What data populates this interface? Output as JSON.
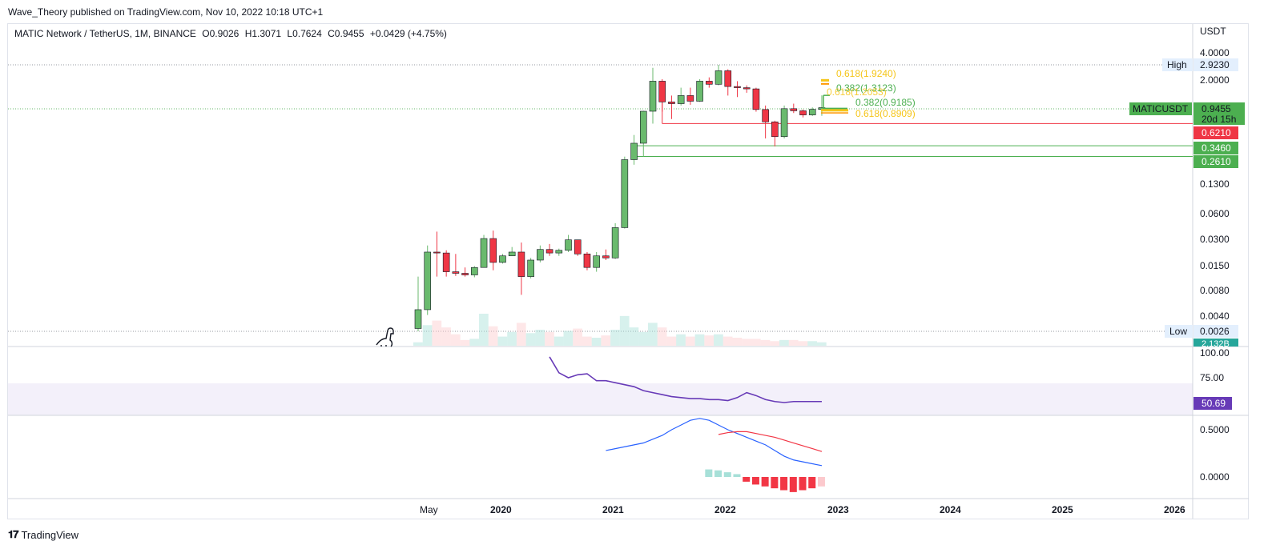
{
  "header": {
    "published_by": "Wave_Theory published on TradingView.com, Nov 10, 2022 10:18 UTC+1"
  },
  "legend": {
    "symbol": "MATIC Network / TetherUS, 1M, BINANCE",
    "open": "O0.9026",
    "high": "H1.3071",
    "low": "L0.7624",
    "close": "C0.9455",
    "change": "+0.0429 (+4.75%)"
  },
  "price_axis": {
    "currency": "USDT",
    "ticks": [
      "4.0000",
      "2.0000",
      "0.1300",
      "0.0600",
      "0.0300",
      "0.0150",
      "0.0080",
      "0.0040"
    ]
  },
  "price_labels": {
    "high_label": "High",
    "high_value": "2.9230",
    "low_label": "Low",
    "low_value": "0.0026",
    "symbol_tag": "MATICUSDT",
    "last_price": "0.9455",
    "countdown": "20d 15h",
    "resistance": "0.6210",
    "support_1": "0.3460",
    "support_2": "0.2610",
    "volume_tag": "2.132B"
  },
  "fib_labels": {
    "gold_top": "0.618(1.9240)",
    "green_mid": "0.382(1.3123)",
    "gold_mid": "0.618(1.2053)",
    "green_low": "0.382(0.9185)",
    "gold_low": "0.618(0.8909)"
  },
  "rsi": {
    "ticks": [
      "100.00",
      "75.00"
    ],
    "value": "50.69",
    "color": "#673ab7"
  },
  "macd": {
    "ticks": [
      "0.5000",
      "0.0000"
    ]
  },
  "time_axis": {
    "labels": [
      "May",
      "2020",
      "2021",
      "2022",
      "2023",
      "2024",
      "2025",
      "2026"
    ]
  },
  "branding": {
    "name": "TradingView"
  },
  "colors": {
    "up": "#6aba6e",
    "down": "#ef3645",
    "rsi_band": "#f3f0fa",
    "signal": "#f23645",
    "macd_line": "#2962ff",
    "hist_pos": "#a7e0d8",
    "hist_neg": "#f23645",
    "gold": "#f5c518",
    "green_fib": "#4caf50"
  },
  "chart_data": {
    "type": "candlestick",
    "title": "MATIC Network / TetherUS, 1M, BINANCE",
    "y_scale": "log",
    "ylabel": "USDT",
    "candles": [
      {
        "t": "2019-04",
        "o": 0.0028,
        "h": 0.011,
        "l": 0.0026,
        "c": 0.0046
      },
      {
        "t": "2019-05",
        "o": 0.0046,
        "h": 0.025,
        "l": 0.004,
        "c": 0.021
      },
      {
        "t": "2019-06",
        "o": 0.021,
        "h": 0.036,
        "l": 0.011,
        "c": 0.0205
      },
      {
        "t": "2019-07",
        "o": 0.0205,
        "h": 0.022,
        "l": 0.011,
        "c": 0.0125
      },
      {
        "t": "2019-08",
        "o": 0.0125,
        "h": 0.02,
        "l": 0.0112,
        "c": 0.012
      },
      {
        "t": "2019-09",
        "o": 0.012,
        "h": 0.014,
        "l": 0.011,
        "c": 0.0115
      },
      {
        "t": "2019-10",
        "o": 0.0115,
        "h": 0.0145,
        "l": 0.0108,
        "c": 0.014
      },
      {
        "t": "2019-11",
        "o": 0.014,
        "h": 0.033,
        "l": 0.014,
        "c": 0.03
      },
      {
        "t": "2019-12",
        "o": 0.03,
        "h": 0.037,
        "l": 0.013,
        "c": 0.016
      },
      {
        "t": "2020-01",
        "o": 0.016,
        "h": 0.02,
        "l": 0.0155,
        "c": 0.019
      },
      {
        "t": "2020-02",
        "o": 0.019,
        "h": 0.024,
        "l": 0.019,
        "c": 0.021
      },
      {
        "t": "2020-03",
        "o": 0.021,
        "h": 0.027,
        "l": 0.0068,
        "c": 0.011
      },
      {
        "t": "2020-04",
        "o": 0.011,
        "h": 0.018,
        "l": 0.0105,
        "c": 0.017
      },
      {
        "t": "2020-05",
        "o": 0.017,
        "h": 0.025,
        "l": 0.016,
        "c": 0.0225
      },
      {
        "t": "2020-06",
        "o": 0.0225,
        "h": 0.026,
        "l": 0.019,
        "c": 0.0205
      },
      {
        "t": "2020-07",
        "o": 0.0205,
        "h": 0.023,
        "l": 0.019,
        "c": 0.022
      },
      {
        "t": "2020-08",
        "o": 0.022,
        "h": 0.033,
        "l": 0.021,
        "c": 0.029
      },
      {
        "t": "2020-09",
        "o": 0.029,
        "h": 0.029,
        "l": 0.019,
        "c": 0.02
      },
      {
        "t": "2020-10",
        "o": 0.02,
        "h": 0.021,
        "l": 0.013,
        "c": 0.014
      },
      {
        "t": "2020-11",
        "o": 0.014,
        "h": 0.021,
        "l": 0.0125,
        "c": 0.019
      },
      {
        "t": "2020-12",
        "o": 0.019,
        "h": 0.0225,
        "l": 0.017,
        "c": 0.018
      },
      {
        "t": "2021-01",
        "o": 0.018,
        "h": 0.045,
        "l": 0.0175,
        "c": 0.04
      },
      {
        "t": "2021-02",
        "o": 0.04,
        "h": 0.26,
        "l": 0.039,
        "c": 0.24
      },
      {
        "t": "2021-03",
        "o": 0.24,
        "h": 0.46,
        "l": 0.21,
        "c": 0.37
      },
      {
        "t": "2021-04",
        "o": 0.37,
        "h": 0.87,
        "l": 0.261,
        "c": 0.86
      },
      {
        "t": "2021-05",
        "o": 0.86,
        "h": 2.7,
        "l": 0.62,
        "c": 1.9
      },
      {
        "t": "2021-06",
        "o": 1.9,
        "h": 2.0,
        "l": 0.85,
        "c": 1.1
      },
      {
        "t": "2021-07",
        "o": 1.1,
        "h": 1.3,
        "l": 0.7,
        "c": 1.05
      },
      {
        "t": "2021-08",
        "o": 1.05,
        "h": 1.6,
        "l": 1.0,
        "c": 1.3
      },
      {
        "t": "2021-09",
        "o": 1.3,
        "h": 1.6,
        "l": 1.02,
        "c": 1.12
      },
      {
        "t": "2021-10",
        "o": 1.12,
        "h": 2.0,
        "l": 1.1,
        "c": 1.9
      },
      {
        "t": "2021-11",
        "o": 1.9,
        "h": 2.1,
        "l": 1.6,
        "c": 1.75
      },
      {
        "t": "2021-12",
        "o": 1.75,
        "h": 2.923,
        "l": 1.7,
        "c": 2.5
      },
      {
        "t": "2022-01",
        "o": 2.5,
        "h": 2.6,
        "l": 1.3,
        "c": 1.65
      },
      {
        "t": "2022-02",
        "o": 1.65,
        "h": 1.9,
        "l": 1.25,
        "c": 1.6
      },
      {
        "t": "2022-03",
        "o": 1.6,
        "h": 1.7,
        "l": 1.4,
        "c": 1.55
      },
      {
        "t": "2022-04",
        "o": 1.55,
        "h": 1.6,
        "l": 0.85,
        "c": 0.9
      },
      {
        "t": "2022-05",
        "o": 0.9,
        "h": 1.0,
        "l": 0.42,
        "c": 0.65
      },
      {
        "t": "2022-06",
        "o": 0.65,
        "h": 0.67,
        "l": 0.34,
        "c": 0.44
      },
      {
        "t": "2022-07",
        "o": 0.44,
        "h": 1.0,
        "l": 0.42,
        "c": 0.92
      },
      {
        "t": "2022-08",
        "o": 0.92,
        "h": 1.05,
        "l": 0.82,
        "c": 0.87
      },
      {
        "t": "2022-09",
        "o": 0.87,
        "h": 0.9,
        "l": 0.73,
        "c": 0.78
      },
      {
        "t": "2022-10",
        "o": 0.78,
        "h": 0.95,
        "l": 0.76,
        "c": 0.9026
      },
      {
        "t": "2022-11",
        "o": 0.9026,
        "h": 1.3071,
        "l": 0.7624,
        "c": 0.9455
      }
    ],
    "volume": [
      0.3,
      1.8,
      2.2,
      1.6,
      1.0,
      0.5,
      0.6,
      2.8,
      1.7,
      0.8,
      1.2,
      2.0,
      1.1,
      1.4,
      1.2,
      0.8,
      1.3,
      1.5,
      0.8,
      0.7,
      0.9,
      1.4,
      2.6,
      1.6,
      1.2,
      2.0,
      1.6,
      0.8,
      1.0,
      0.8,
      1.0,
      0.9,
      1.0,
      0.8,
      0.7,
      0.6,
      0.6,
      0.5,
      0.4,
      0.5,
      0.5,
      0.4,
      0.4,
      0.3
    ],
    "rsi": [
      80,
      75,
      68,
      68,
      61,
      62,
      60,
      58,
      62,
      60,
      58,
      75,
      93,
      96,
      96,
      80,
      75,
      78,
      79,
      72,
      72,
      70,
      68,
      66,
      62,
      60,
      58,
      56,
      55,
      54,
      54,
      53,
      53,
      52,
      55,
      60,
      57,
      53,
      51,
      50,
      51,
      51,
      51,
      51
    ],
    "macd": [
      0.28,
      0.3,
      0.32,
      0.34,
      0.36,
      0.4,
      0.44,
      0.5,
      0.55,
      0.6,
      0.62,
      0.6,
      0.55,
      0.5,
      0.46,
      0.42,
      0.38,
      0.34,
      0.28,
      0.22,
      0.18,
      0.16,
      0.14,
      0.12
    ],
    "signal": [
      0.45,
      0.47,
      0.48,
      0.48,
      0.46,
      0.44,
      0.42,
      0.39,
      0.36,
      0.33,
      0.3,
      0.27
    ],
    "histogram": [
      0.08,
      0.07,
      0.05,
      0.03,
      -0.05,
      -0.08,
      -0.1,
      -0.12,
      -0.14,
      -0.16,
      -0.14,
      -0.12,
      -0.1
    ],
    "levels": {
      "resistance": 0.621,
      "support": [
        0.346,
        0.261
      ],
      "all_time_high": 2.923,
      "all_time_low": 0.0026,
      "fib_targets": [
        1.924,
        1.3123,
        1.2053,
        0.9185,
        0.8909
      ]
    },
    "x_range": [
      "2019-04",
      "2026-12"
    ],
    "grid": false,
    "legend_position": "top-left"
  }
}
